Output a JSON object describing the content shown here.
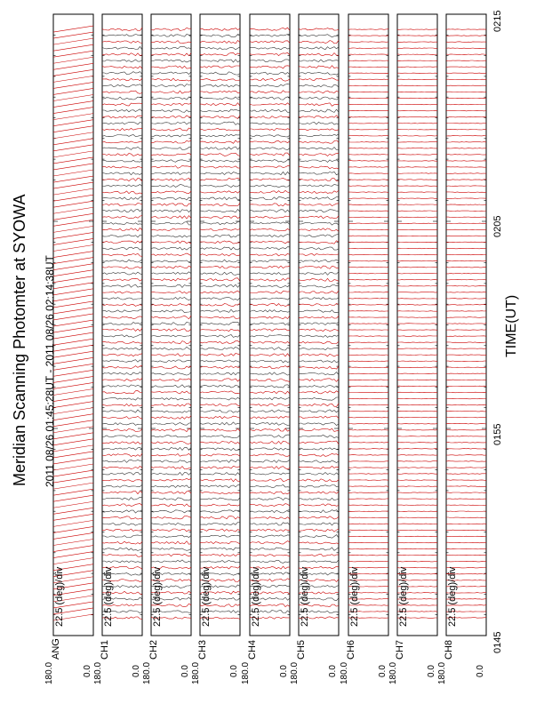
{
  "chart_data": {
    "type": "line",
    "title": "Meridian Scanning Photomter at SYOWA",
    "subtitle": "2011 08/26 01:45:28UT - 2011 08/26 02:14:38UT",
    "xlabel": "TIME(UT)",
    "x_ticks": [
      "0145",
      "0155",
      "0205",
      "0215"
    ],
    "panels": [
      {
        "label": "ANG",
        "scale": "22.5 (deg)/div",
        "y_top": "180.0",
        "y_bottom": "0.0"
      },
      {
        "label": "CH1",
        "scale": "22.5 (deg)/div",
        "y_top": "180.0",
        "y_bottom": "0.0"
      },
      {
        "label": "CH2",
        "scale": "22.5 (deg)/div",
        "y_top": "180.0",
        "y_bottom": "0.0"
      },
      {
        "label": "CH3",
        "scale": "22.5 (deg)/div",
        "y_top": "180.0",
        "y_bottom": "0.0"
      },
      {
        "label": "CH4",
        "scale": "22.5 (deg)/div",
        "y_top": "180.0",
        "y_bottom": "0.0"
      },
      {
        "label": "CH5",
        "scale": "22.5 (deg)/div",
        "y_top": "180.0",
        "y_bottom": "0.0"
      },
      {
        "label": "CH6",
        "scale": "22.5 (deg)/div",
        "y_top": "180.0",
        "y_bottom": "0.0"
      },
      {
        "label": "CH7",
        "scale": "22.5 (deg)/div",
        "y_top": "180.0",
        "y_bottom": "0.0"
      },
      {
        "label": "CH8",
        "scale": "22.5 (deg)/div",
        "y_top": "180.0",
        "y_bottom": "0.0"
      }
    ],
    "time_range": [
      "01:45",
      "02:15"
    ],
    "series_color": "#cc0000",
    "trace_color": "#333333",
    "orientation": "rotated 90 degrees (time runs bottom to top)"
  }
}
